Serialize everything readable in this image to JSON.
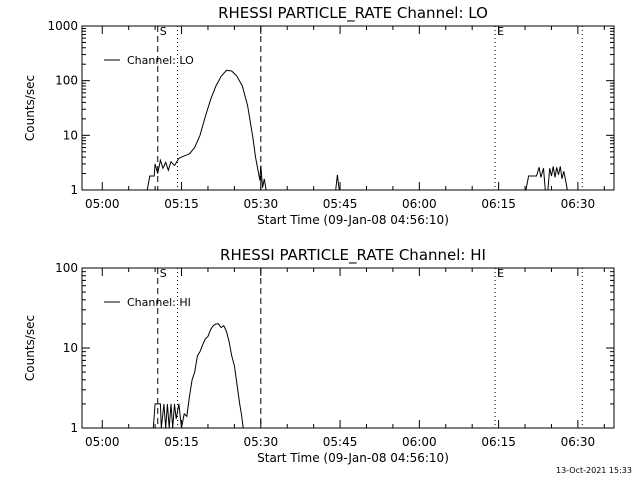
{
  "footer": {
    "date": "13-Oct-2021 15:33"
  },
  "chart_data": [
    {
      "type": "line",
      "title": "RHESSI PARTICLE_RATE Channel: LO",
      "xlabel": "Start Time (09-Jan-08 04:56:10)",
      "ylabel": "Counts/sec",
      "yscale": "log",
      "ylim": [
        1,
        1000
      ],
      "xlim": [
        "04:56:10",
        "06:36:50"
      ],
      "x_ticks": [
        "05:00",
        "05:15",
        "05:30",
        "05:45",
        "06:00",
        "06:15",
        "06:30"
      ],
      "y_ticks": [
        "1",
        "10",
        "100",
        "1000"
      ],
      "legend": {
        "label": "Channel: LO",
        "position": "top-left"
      },
      "grid": false,
      "markers": [
        {
          "label": "S",
          "time": "05:10:30",
          "style": "dashed"
        },
        {
          "label": "",
          "time": "05:14:15",
          "style": "dotted"
        },
        {
          "label": "",
          "time": "05:30:00",
          "style": "dashed"
        },
        {
          "label": "E",
          "time": "06:14:20",
          "style": "dotted"
        },
        {
          "label": "",
          "time": "06:30:50",
          "style": "dotted"
        }
      ],
      "series": [
        {
          "points": [
            [
              "05:08:30",
              1
            ],
            [
              "05:09:00",
              1.8
            ],
            [
              "05:09:50",
              1.8
            ],
            [
              "05:10:00",
              3
            ],
            [
              "05:10:30",
              2
            ],
            [
              "05:11:00",
              3.5
            ],
            [
              "05:11:30",
              2.5
            ],
            [
              "05:12:00",
              3.2
            ],
            [
              "05:12:30",
              2.3
            ],
            [
              "05:13:00",
              3.3
            ],
            [
              "05:13:40",
              2.8
            ],
            [
              "05:14:30",
              3.8
            ],
            [
              "05:15:30",
              4.2
            ],
            [
              "05:16:30",
              4.6
            ],
            [
              "05:17:30",
              6
            ],
            [
              "05:18:30",
              10
            ],
            [
              "05:19:30",
              22
            ],
            [
              "05:20:30",
              45
            ],
            [
              "05:21:30",
              80
            ],
            [
              "05:22:30",
              120
            ],
            [
              "05:23:30",
              155
            ],
            [
              "05:24:30",
              150
            ],
            [
              "05:25:30",
              120
            ],
            [
              "05:26:30",
              80
            ],
            [
              "05:27:30",
              35
            ],
            [
              "05:28:30",
              9
            ],
            [
              "05:29:00",
              4
            ],
            [
              "05:29:30",
              2.2
            ],
            [
              "05:29:50",
              1.5
            ],
            [
              "05:30:00",
              2.8
            ],
            [
              "05:30:20",
              1.1
            ],
            [
              "05:30:40",
              1.6
            ],
            [
              "05:31:00",
              1
            ]
          ]
        },
        {
          "points": [
            [
              "05:44:10",
              1
            ],
            [
              "05:44:30",
              1.9
            ],
            [
              "05:44:50",
              1
            ]
          ]
        },
        {
          "points": [
            [
              "06:20:10",
              1
            ],
            [
              "06:20:40",
              1.8
            ],
            [
              "06:22:10",
              1.8
            ],
            [
              "06:22:40",
              2.6
            ],
            [
              "06:23:00",
              1.7
            ],
            [
              "06:23:30",
              2.5
            ],
            [
              "06:23:50",
              1
            ],
            [
              "06:24:20",
              1
            ],
            [
              "06:24:40",
              2.5
            ],
            [
              "06:25:00",
              1.8
            ],
            [
              "06:25:20",
              2.7
            ],
            [
              "06:25:40",
              1.7
            ],
            [
              "06:26:00",
              2.6
            ],
            [
              "06:26:20",
              1.9
            ],
            [
              "06:26:40",
              2.7
            ],
            [
              "06:27:00",
              1.6
            ],
            [
              "06:27:20",
              2.2
            ],
            [
              "06:27:40",
              1.5
            ],
            [
              "06:28:00",
              1
            ]
          ]
        }
      ]
    },
    {
      "type": "line",
      "title": "RHESSI PARTICLE_RATE Channel: HI",
      "xlabel": "Start Time (09-Jan-08 04:56:10)",
      "ylabel": "Counts/sec",
      "yscale": "log",
      "ylim": [
        1,
        100
      ],
      "xlim": [
        "04:56:10",
        "06:36:50"
      ],
      "x_ticks": [
        "05:00",
        "05:15",
        "05:30",
        "05:45",
        "06:00",
        "06:15",
        "06:30"
      ],
      "y_ticks": [
        "1",
        "10",
        "100"
      ],
      "legend": {
        "label": "Channel: HI",
        "position": "top-left"
      },
      "grid": false,
      "markers": [
        {
          "label": "S",
          "time": "05:10:30",
          "style": "dashed"
        },
        {
          "label": "",
          "time": "05:14:15",
          "style": "dotted"
        },
        {
          "label": "",
          "time": "05:30:00",
          "style": "dashed"
        },
        {
          "label": "E",
          "time": "06:14:20",
          "style": "dotted"
        },
        {
          "label": "",
          "time": "06:30:50",
          "style": "dotted"
        }
      ],
      "series": [
        {
          "points": [
            [
              "05:09:40",
              1
            ],
            [
              "05:10:00",
              2
            ],
            [
              "05:11:00",
              2
            ],
            [
              "05:11:10",
              1
            ],
            [
              "05:11:40",
              2
            ],
            [
              "05:12:00",
              1
            ],
            [
              "05:12:20",
              2
            ],
            [
              "05:12:40",
              1
            ],
            [
              "05:13:00",
              2
            ],
            [
              "05:13:20",
              1
            ],
            [
              "05:13:40",
              2
            ],
            [
              "05:14:00",
              1.3
            ],
            [
              "05:14:30",
              2
            ],
            [
              "05:15:00",
              1
            ],
            [
              "05:15:30",
              1.5
            ],
            [
              "05:16:00",
              1.4
            ],
            [
              "05:16:30",
              2.5
            ],
            [
              "05:17:00",
              4
            ],
            [
              "05:17:30",
              5
            ],
            [
              "05:18:00",
              8
            ],
            [
              "05:18:30",
              9
            ],
            [
              "05:19:00",
              11
            ],
            [
              "05:19:30",
              13
            ],
            [
              "05:20:00",
              14
            ],
            [
              "05:20:30",
              17
            ],
            [
              "05:21:00",
              19
            ],
            [
              "05:21:30",
              20
            ],
            [
              "05:22:00",
              20
            ],
            [
              "05:22:30",
              18
            ],
            [
              "05:23:00",
              19
            ],
            [
              "05:23:30",
              16
            ],
            [
              "05:24:00",
              12
            ],
            [
              "05:24:30",
              8
            ],
            [
              "05:25:00",
              6
            ],
            [
              "05:25:30",
              3.5
            ],
            [
              "05:26:00",
              2
            ],
            [
              "05:26:20",
              1.5
            ],
            [
              "05:26:40",
              1
            ]
          ]
        }
      ]
    }
  ]
}
